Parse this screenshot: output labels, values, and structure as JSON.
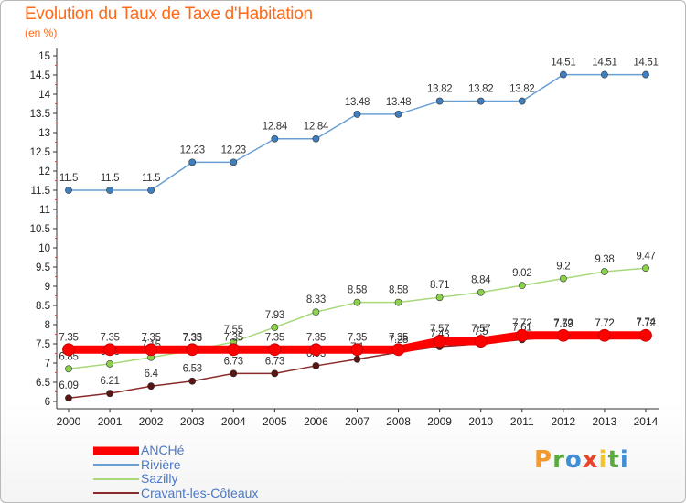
{
  "title": "Evolution du Taux de Taxe d'Habitation",
  "subtitle": "(en %)",
  "logo": [
    "P",
    "r",
    "o",
    "x",
    "i",
    "t",
    "i"
  ],
  "chart_data": {
    "type": "line",
    "x": [
      "2000",
      "2001",
      "2002",
      "2003",
      "2004",
      "2005",
      "2006",
      "2007",
      "2008",
      "2009",
      "2010",
      "2011",
      "2012",
      "2013",
      "2014"
    ],
    "ylim": [
      6,
      15
    ],
    "yticks": [
      6,
      6.5,
      7,
      7.5,
      8,
      8.5,
      9,
      9.5,
      10,
      10.5,
      11,
      11.5,
      12,
      12.5,
      13,
      13.5,
      14,
      14.5,
      15
    ],
    "grid": false,
    "legend_position": "bottom-left",
    "series": [
      {
        "name": "Rivière",
        "color": "#6a9fd4",
        "marker": "#3f7fc0",
        "values": [
          11.5,
          11.5,
          11.5,
          12.23,
          12.23,
          12.84,
          12.84,
          13.48,
          13.48,
          13.82,
          13.82,
          13.82,
          14.51,
          14.51,
          14.51
        ],
        "labels": [
          "11.5",
          "11.5",
          "11.5",
          "12.23",
          "12.23",
          "12.84",
          "12.84",
          "13.48",
          "13.48",
          "13.82",
          "13.82",
          "13.82",
          "14.51",
          "14.51",
          "14.51"
        ]
      },
      {
        "name": "Sazilly",
        "color": "#a8d87a",
        "marker": "#8cd14c",
        "values": [
          6.85,
          6.98,
          7.15,
          7.33,
          7.55,
          7.93,
          8.33,
          8.58,
          8.58,
          8.71,
          8.84,
          9.02,
          9.2,
          9.38,
          9.47
        ],
        "labels": [
          "6.85",
          "6.98",
          "7.15",
          "7.33",
          "7.55",
          "7.93",
          "8.33",
          "8.58",
          "8.58",
          "8.71",
          "8.84",
          "9.02",
          "9.2",
          "9.38",
          "9.47"
        ]
      },
      {
        "name": "Cravant-les-Côteaux",
        "color": "#8a2a2a",
        "marker": "#5a1414",
        "values": [
          6.09,
          6.21,
          6.4,
          6.53,
          6.73,
          6.73,
          6.93,
          7.1,
          7.28,
          7.43,
          7.5,
          7.61,
          7.69,
          7.72,
          7.74
        ],
        "labels": [
          "6.09",
          "6.21",
          "6.4",
          "6.53",
          "6.73",
          "6.73",
          "6.93",
          "7.1",
          "7.28",
          "7.43",
          "7.5",
          "7.61",
          "7.69",
          "7.72",
          "7.74"
        ]
      },
      {
        "name": "ANCHé",
        "color": "#ff0000",
        "marker": "#ff0000",
        "values": [
          7.35,
          7.35,
          7.35,
          7.35,
          7.35,
          7.35,
          7.35,
          7.35,
          7.35,
          7.57,
          7.57,
          7.72,
          7.72,
          7.72,
          7.72
        ],
        "labels": [
          "7.35",
          "7.35",
          "7.35",
          "7.35",
          "7.35",
          "7.35",
          "7.35",
          "7.35",
          "7.35",
          "7.57",
          "7.57",
          "7.72",
          "7.72",
          "7.72",
          "7.72"
        ]
      }
    ]
  },
  "legend": [
    {
      "label": "ANCHé",
      "color": "#ff0000"
    },
    {
      "label": "Rivière",
      "color": "#6a9fd4"
    },
    {
      "label": "Sazilly",
      "color": "#a8d87a"
    },
    {
      "label": "Cravant-les-Côteaux",
      "color": "#8a2a2a"
    }
  ]
}
